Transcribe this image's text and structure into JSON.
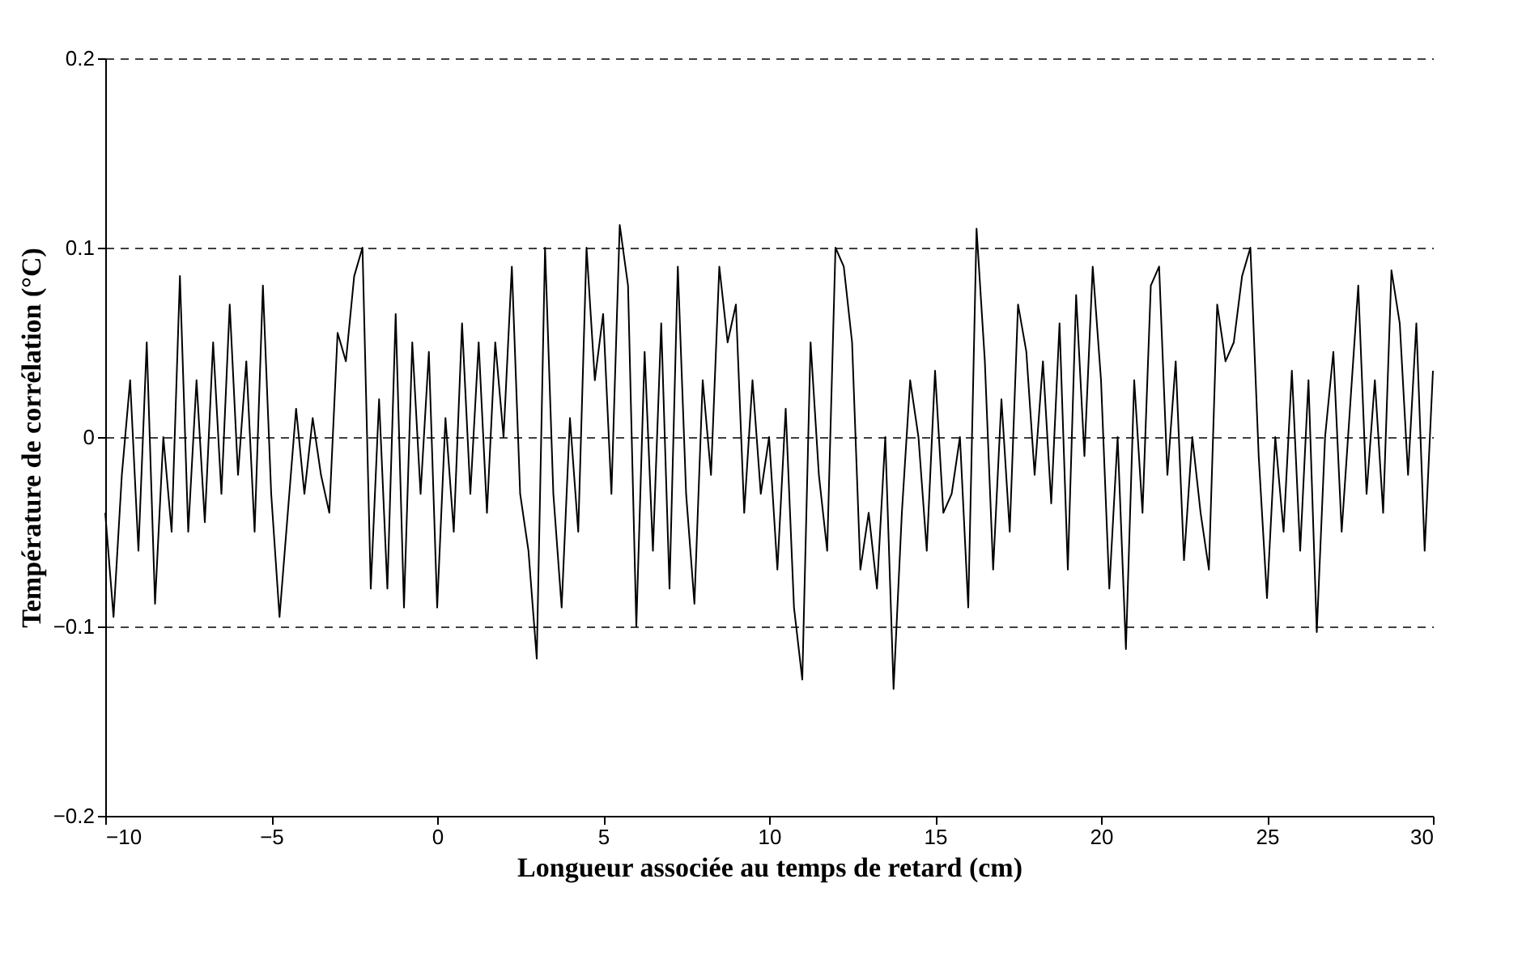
{
  "chart_data": {
    "type": "line",
    "xlabel": "Longueur associée au temps de retard (cm)",
    "ylabel": "Température de corrélation (°C)",
    "x": [
      -10,
      -9.75,
      -9.5,
      -9.25,
      -9,
      -8.75,
      -8.5,
      -8.25,
      -8,
      -7.75,
      -7.5,
      -7.25,
      -7,
      -6.75,
      -6.5,
      -6.25,
      -6,
      -5.75,
      -5.5,
      -5.25,
      -5,
      -4.75,
      -4.5,
      -4.25,
      -4,
      -3.75,
      -3.5,
      -3.25,
      -3,
      -2.75,
      -2.5,
      -2.25,
      -2,
      -1.75,
      -1.5,
      -1.25,
      -1,
      -0.75,
      -0.5,
      -0.25,
      0,
      0.25,
      0.5,
      0.75,
      1,
      1.25,
      1.5,
      1.75,
      2,
      2.25,
      2.5,
      2.75,
      3,
      3.25,
      3.5,
      3.75,
      4,
      4.25,
      4.5,
      4.75,
      5,
      5.25,
      5.5,
      5.75,
      6,
      6.25,
      6.5,
      6.75,
      7,
      7.25,
      7.5,
      7.75,
      8,
      8.25,
      8.5,
      8.75,
      9,
      9.25,
      9.5,
      9.75,
      10,
      10.25,
      10.5,
      10.75,
      11,
      11.25,
      11.5,
      11.75,
      12,
      12.25,
      12.5,
      12.75,
      13,
      13.25,
      13.5,
      13.75,
      14,
      14.25,
      14.5,
      14.75,
      15,
      15.25,
      15.5,
      15.75,
      16,
      16.25,
      16.5,
      16.75,
      17,
      17.25,
      17.5,
      17.75,
      18,
      18.25,
      18.5,
      18.75,
      19,
      19.25,
      19.5,
      19.75,
      20,
      20.25,
      20.5,
      20.75,
      21,
      21.25,
      21.5,
      21.75,
      22,
      22.25,
      22.5,
      22.75,
      23,
      23.25,
      23.5,
      23.75,
      24,
      24.25,
      24.5,
      24.75,
      25,
      25.25,
      25.5,
      25.75,
      26,
      26.25,
      26.5,
      26.75,
      27,
      27.25,
      27.5,
      27.75,
      28,
      28.25,
      28.5,
      28.75,
      29,
      29.25,
      29.5,
      29.75,
      30
    ],
    "series": [
      {
        "color": "#000000",
        "values": [
          -0.04,
          -0.095,
          -0.02,
          0.03,
          -0.06,
          0.05,
          -0.088,
          0.0,
          -0.05,
          0.085,
          -0.05,
          0.03,
          -0.045,
          0.05,
          -0.03,
          0.07,
          -0.02,
          0.04,
          -0.05,
          0.08,
          -0.03,
          -0.095,
          -0.04,
          0.015,
          -0.03,
          0.01,
          -0.02,
          -0.04,
          0.055,
          0.04,
          0.085,
          0.1,
          -0.08,
          0.02,
          -0.08,
          0.065,
          -0.09,
          0.05,
          -0.03,
          0.045,
          -0.09,
          0.01,
          -0.05,
          0.06,
          -0.03,
          0.05,
          -0.04,
          0.05,
          0.0,
          0.09,
          -0.03,
          -0.06,
          -0.117,
          0.1,
          -0.03,
          -0.09,
          0.01,
          -0.05,
          0.1,
          0.03,
          0.065,
          -0.03,
          0.112,
          0.08,
          -0.1,
          0.045,
          -0.06,
          0.06,
          -0.08,
          0.09,
          -0.03,
          -0.088,
          0.03,
          -0.02,
          0.09,
          0.05,
          0.07,
          -0.04,
          0.03,
          -0.03,
          0.0,
          -0.07,
          0.015,
          -0.09,
          -0.128,
          0.05,
          -0.02,
          -0.06,
          0.1,
          0.09,
          0.05,
          -0.07,
          -0.04,
          -0.08,
          0.0,
          -0.133,
          -0.04,
          0.03,
          0.0,
          -0.06,
          0.035,
          -0.04,
          -0.03,
          0.0,
          -0.09,
          0.11,
          0.04,
          -0.07,
          0.02,
          -0.05,
          0.07,
          0.045,
          -0.02,
          0.04,
          -0.035,
          0.06,
          -0.07,
          0.075,
          -0.01,
          0.09,
          0.03,
          -0.08,
          0.0,
          -0.112,
          0.03,
          -0.04,
          0.08,
          0.09,
          -0.02,
          0.04,
          -0.065,
          0.0,
          -0.04,
          -0.07,
          0.07,
          0.04,
          0.05,
          0.085,
          0.1,
          -0.01,
          -0.085,
          0.0,
          -0.05,
          0.035,
          -0.06,
          0.03,
          -0.103,
          0.0,
          0.045,
          -0.05,
          0.015,
          0.08,
          -0.03,
          0.03,
          -0.04,
          0.088,
          0.06,
          -0.02,
          0.06,
          -0.06,
          0.035
        ]
      }
    ],
    "xlim": [
      -10,
      30
    ],
    "xticks": [
      -10,
      -5,
      0,
      5,
      10,
      15,
      20,
      25,
      30
    ],
    "ylim": [
      -0.2,
      0.2
    ],
    "yticks": [
      -0.2,
      -0.1,
      0,
      0.1,
      0.2
    ],
    "grid": "y",
    "marker": "none",
    "line_style": "solid"
  }
}
